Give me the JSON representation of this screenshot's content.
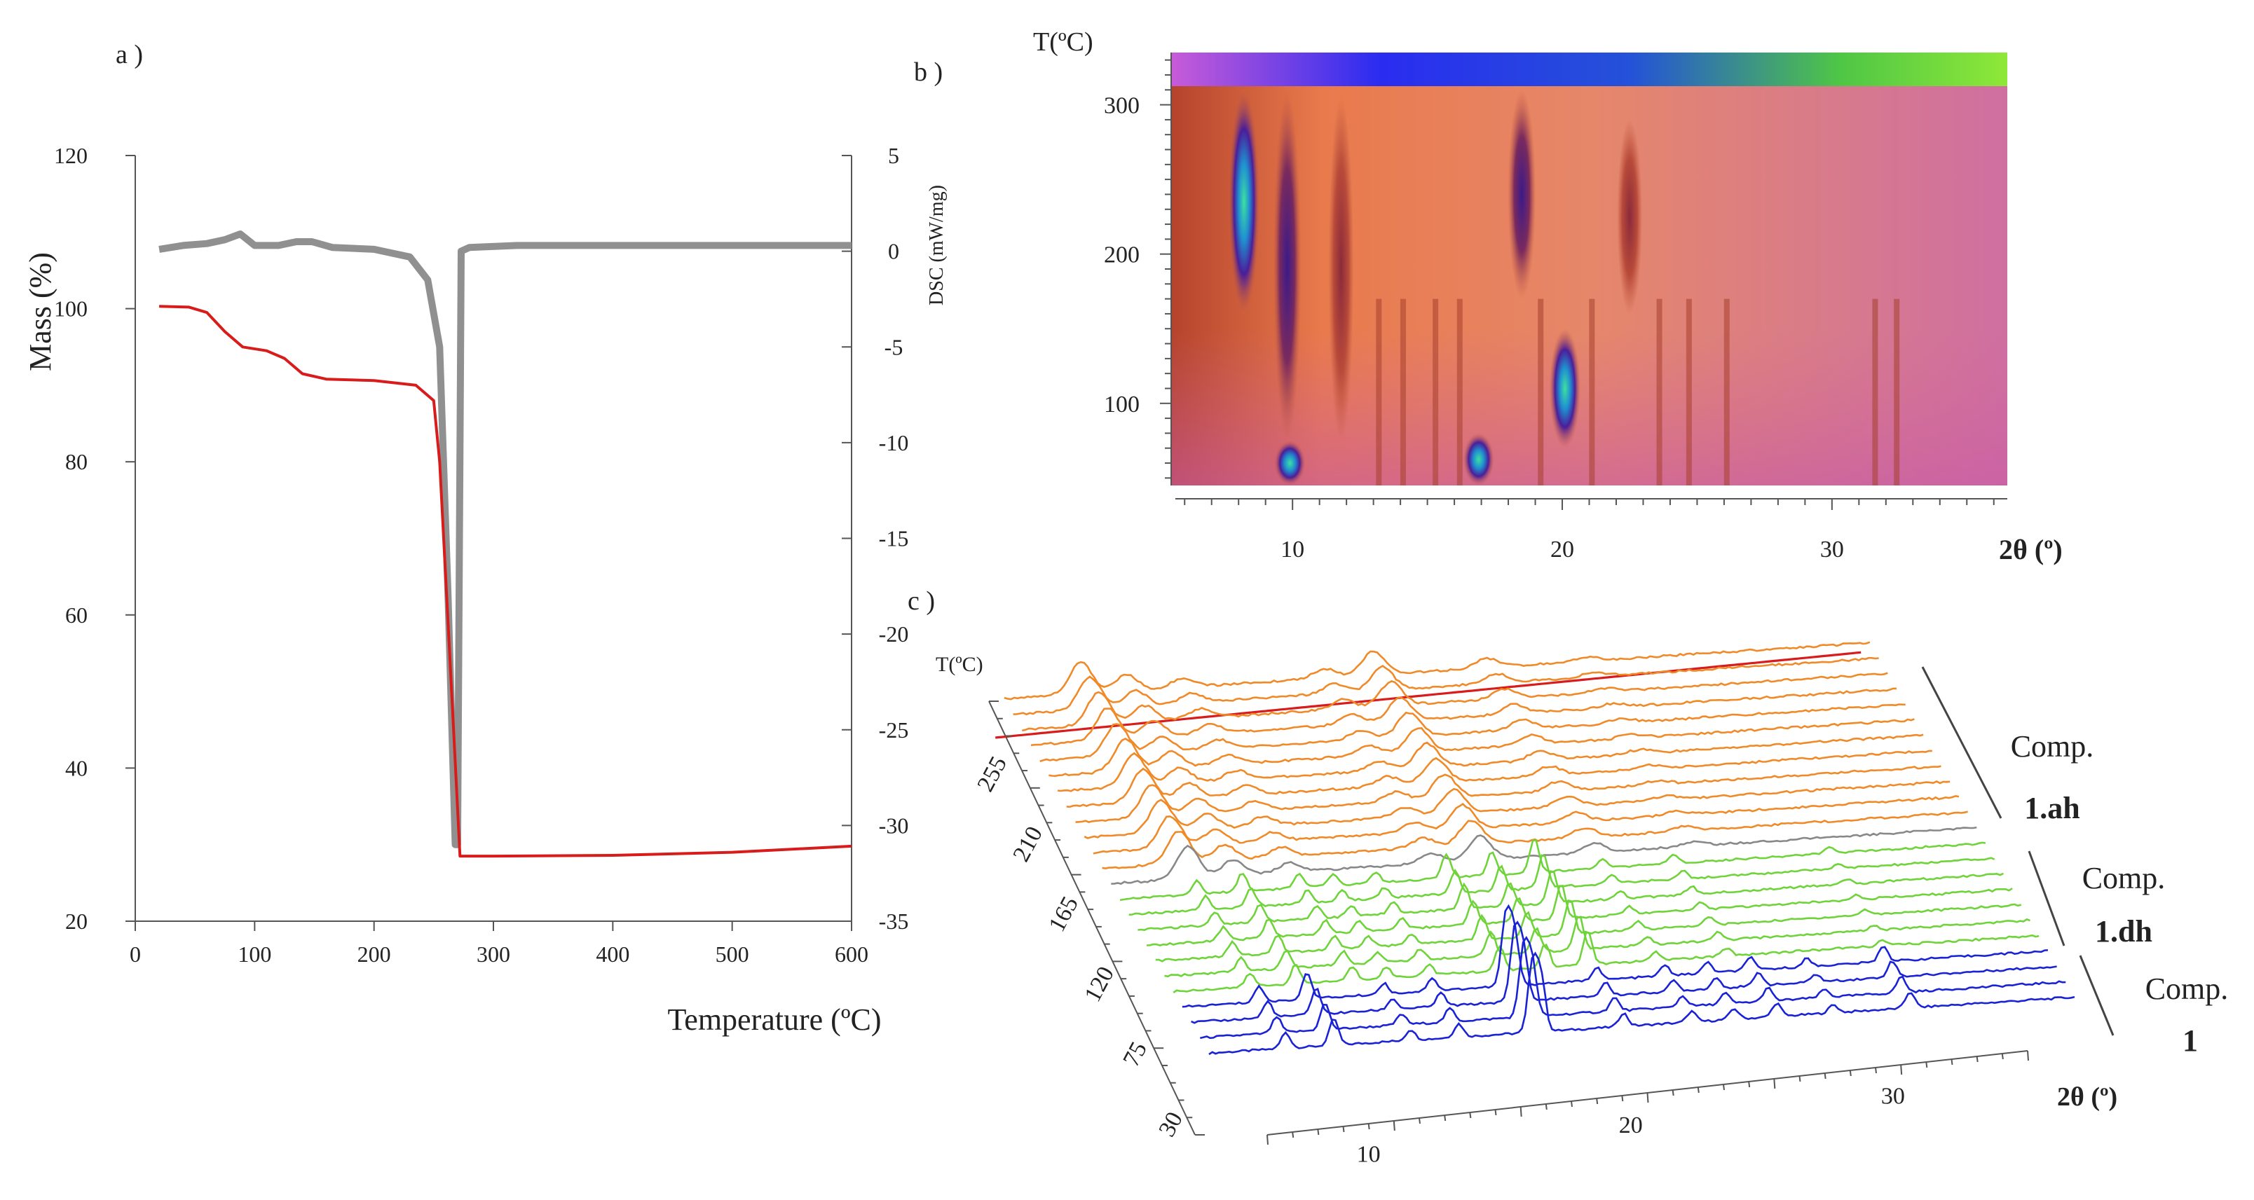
{
  "panel_labels": {
    "a": "a )",
    "b": "b )",
    "c": "c )"
  },
  "colors": {
    "mass": "#d81b1b",
    "dsc": "#909090",
    "dehydrated": "#f08a28",
    "dihydrate": "#6fd33a",
    "anhydrate": "#1a22d6",
    "molten": "#d81b1b",
    "intermediate": "#888888"
  },
  "chart_data": [
    {
      "type": "line",
      "title": "",
      "xlabel": "Temperature (ºC)",
      "ylabel": "Mass (%)",
      "y2label": "DSC (mW/mg)",
      "xlim": [
        0,
        600
      ],
      "ylim": [
        20,
        120
      ],
      "y2lim": [
        -35,
        5
      ],
      "xticks": [
        "0",
        "100",
        "200",
        "300",
        "400",
        "500",
        "600"
      ],
      "yticks": [
        "120",
        "100",
        "80",
        "60",
        "40",
        "20"
      ],
      "y2ticks": [
        "5",
        "0",
        "-5",
        "-10",
        "-15",
        "-20",
        "-25",
        "-30",
        "-35"
      ],
      "series": [
        {
          "name": "Mass (%)",
          "axis": "left",
          "color": "#d81b1b",
          "x": [
            20,
            45,
            60,
            75,
            90,
            110,
            125,
            140,
            160,
            200,
            235,
            250,
            255,
            265,
            272,
            280,
            300,
            400,
            500,
            600
          ],
          "y": [
            100.3,
            100.2,
            99.5,
            97,
            95,
            94.5,
            93.5,
            91.5,
            90.8,
            90.6,
            90.0,
            88,
            80,
            50,
            28.5,
            28.5,
            28.5,
            28.6,
            29.0,
            29.8
          ]
        },
        {
          "name": "DSC (mW/mg)",
          "axis": "right",
          "color": "#909090",
          "x": [
            20,
            40,
            60,
            75,
            88,
            100,
            120,
            135,
            148,
            165,
            200,
            230,
            245,
            255,
            262,
            268,
            270,
            273,
            280,
            320,
            400,
            500,
            600
          ],
          "y": [
            0.1,
            0.3,
            0.4,
            0.6,
            0.9,
            0.3,
            0.3,
            0.5,
            0.5,
            0.2,
            0.1,
            -0.3,
            -1.5,
            -5,
            -18,
            -31,
            -31,
            0,
            0.2,
            0.3,
            0.3,
            0.3,
            0.3
          ]
        }
      ]
    },
    {
      "type": "heatmap",
      "title": "",
      "xlabel": "2θ (º)",
      "ylabel": "T(ºC)",
      "xlim": [
        5.5,
        36.5
      ],
      "ylim": [
        45,
        335
      ],
      "xticks": [
        "10",
        "20",
        "30"
      ],
      "yticks": [
        "300",
        "200",
        "100"
      ],
      "bands": [
        {
          "two_theta": 8.2,
          "t_from": 160,
          "t_to": 310,
          "intensity": "max"
        },
        {
          "two_theta": 9.8,
          "t_from": 75,
          "t_to": 310,
          "intensity": "high"
        },
        {
          "two_theta": 9.9,
          "t_from": 45,
          "t_to": 75,
          "intensity": "max"
        },
        {
          "two_theta": 11.8,
          "t_from": 75,
          "t_to": 305,
          "intensity": "medium"
        },
        {
          "two_theta": 16.9,
          "t_from": 45,
          "t_to": 80,
          "intensity": "max"
        },
        {
          "two_theta": 18.5,
          "t_from": 170,
          "t_to": 310,
          "intensity": "high"
        },
        {
          "two_theta": 20.1,
          "t_from": 70,
          "t_to": 150,
          "intensity": "max"
        },
        {
          "two_theta": 22.5,
          "t_from": 160,
          "t_to": 290,
          "intensity": "medium"
        }
      ]
    },
    {
      "type": "line",
      "title": "",
      "xlabel": "2θ (º)",
      "ylabel": "T(ºC)",
      "xticks": [
        "10",
        "20",
        "30"
      ],
      "yticks": [
        "30",
        "75",
        "120",
        "165",
        "210",
        "255"
      ],
      "phase_labels": [
        {
          "line1": "Comp.",
          "line2": "1.ah"
        },
        {
          "line1": "Comp.",
          "line2": "1.dh"
        },
        {
          "line1": "Comp.",
          "line2": "1"
        }
      ],
      "series": [
        {
          "name": "Comp. 1",
          "color": "#1a22d6",
          "count": 4,
          "peaks": [
            {
              "x": 8.2,
              "h": 0.6
            },
            {
              "x": 9.9,
              "h": 1.0
            },
            {
              "x": 12.6,
              "h": 0.4
            },
            {
              "x": 14.3,
              "h": 0.5
            },
            {
              "x": 16.9,
              "h": 2.6
            },
            {
              "x": 17.2,
              "h": 2.0
            },
            {
              "x": 20.1,
              "h": 0.5
            },
            {
              "x": 22.5,
              "h": 0.4
            },
            {
              "x": 24.0,
              "h": 0.4
            },
            {
              "x": 25.5,
              "h": 0.5
            },
            {
              "x": 27.5,
              "h": 0.3
            },
            {
              "x": 30.2,
              "h": 0.6
            }
          ]
        },
        {
          "name": "Comp. 1.dh",
          "color": "#6fd33a",
          "count": 7,
          "peaks": [
            {
              "x": 8.2,
              "h": 0.5
            },
            {
              "x": 9.8,
              "h": 0.7
            },
            {
              "x": 11.8,
              "h": 0.5
            },
            {
              "x": 13.0,
              "h": 0.4
            },
            {
              "x": 14.5,
              "h": 0.4
            },
            {
              "x": 17.0,
              "h": 0.9
            },
            {
              "x": 18.6,
              "h": 0.9
            },
            {
              "x": 20.1,
              "h": 1.3
            },
            {
              "x": 22.5,
              "h": 0.3
            },
            {
              "x": 25.0,
              "h": 0.3
            },
            {
              "x": 30.5,
              "h": 0.2
            }
          ]
        },
        {
          "name": "Comp. 1.ah",
          "color": "#f08a28",
          "count": 13,
          "peaks": [
            {
              "x": 8.2,
              "h": 1.2
            },
            {
              "x": 9.8,
              "h": 0.6
            },
            {
              "x": 11.8,
              "h": 0.35
            },
            {
              "x": 16.8,
              "h": 0.35
            },
            {
              "x": 18.5,
              "h": 0.9
            },
            {
              "x": 22.5,
              "h": 0.35
            },
            {
              "x": 26.0,
              "h": 0.15
            }
          ]
        }
      ]
    }
  ]
}
